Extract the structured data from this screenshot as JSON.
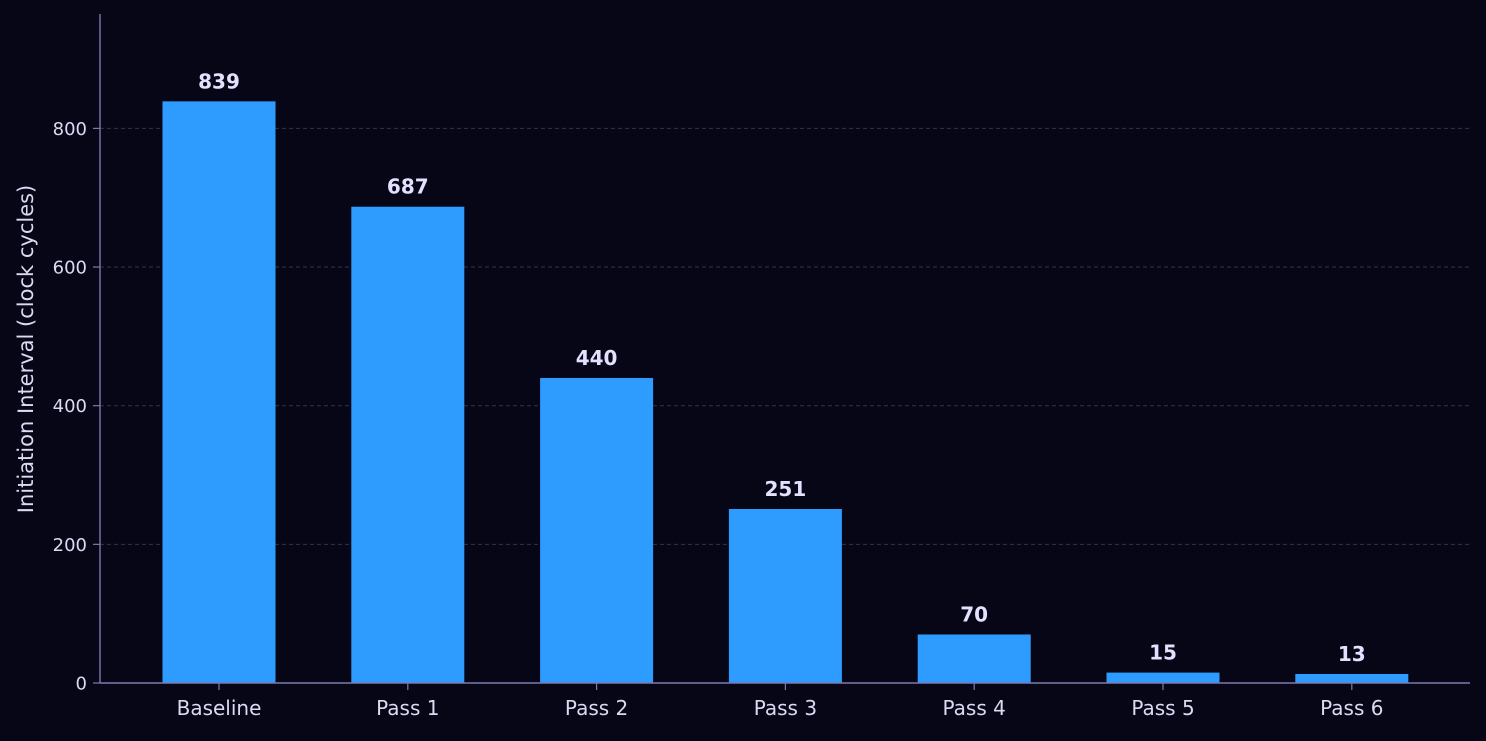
{
  "chart_data": {
    "type": "bar",
    "title": "",
    "xlabel": "",
    "ylabel": "Initiation Interval (clock cycles)",
    "categories": [
      "Baseline",
      "Pass 1",
      "Pass 2",
      "Pass 3",
      "Pass 4",
      "Pass 5",
      "Pass 6"
    ],
    "values": [
      839,
      687,
      440,
      251,
      70,
      15,
      13
    ],
    "value_labels": [
      "839",
      "687",
      "440",
      "251",
      "70",
      "15",
      "13"
    ],
    "yticks": [
      0,
      200,
      400,
      600,
      800
    ],
    "ytick_labels": [
      "0",
      "200",
      "400",
      "600",
      "800"
    ],
    "ylim": [
      0,
      965
    ],
    "grid": "horizontal dashed",
    "legend": "none"
  },
  "colors": {
    "background": "#070617",
    "bar": "#2e9bff",
    "axis": "#7d78b0",
    "grid": "#34334a",
    "tick_text": "#dcdaf2",
    "value_label": "#e3e1ff"
  }
}
